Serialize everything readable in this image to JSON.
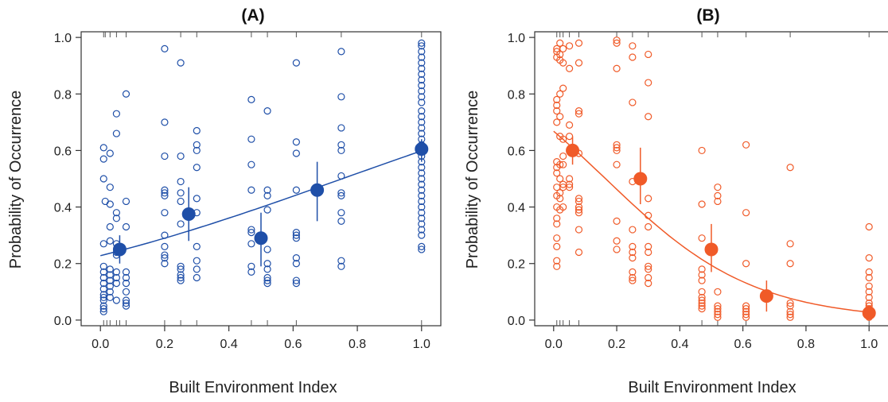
{
  "chart_data": [
    {
      "type": "scatter",
      "title": "(A)",
      "xlabel": "Built Environment Index",
      "ylabel": "Probability of Occurrence",
      "xlim": [
        -0.06,
        1.06
      ],
      "ylim": [
        -0.02,
        1.02
      ],
      "x_ticks": [
        0.0,
        0.2,
        0.4,
        0.6,
        0.8,
        1.0
      ],
      "x_tick_labels": [
        "0.0",
        "0.2",
        "0.4",
        "0.6",
        "0.8",
        "1.0"
      ],
      "y_ticks": [
        0.0,
        0.2,
        0.4,
        0.6,
        0.8,
        1.0
      ],
      "y_tick_labels": [
        "0.0",
        "0.2",
        "0.4",
        "0.6",
        "0.8",
        "1.0"
      ],
      "grid": false,
      "color": "#1f4fa8",
      "points": [
        [
          0.01,
          0.61
        ],
        [
          0.01,
          0.57
        ],
        [
          0.01,
          0.5
        ],
        [
          0.015,
          0.42
        ],
        [
          0.01,
          0.27
        ],
        [
          0.01,
          0.19
        ],
        [
          0.01,
          0.17
        ],
        [
          0.01,
          0.15
        ],
        [
          0.01,
          0.13
        ],
        [
          0.01,
          0.11
        ],
        [
          0.01,
          0.09
        ],
        [
          0.01,
          0.08
        ],
        [
          0.01,
          0.07
        ],
        [
          0.01,
          0.05
        ],
        [
          0.01,
          0.04
        ],
        [
          0.01,
          0.03
        ],
        [
          0.03,
          0.59
        ],
        [
          0.03,
          0.47
        ],
        [
          0.03,
          0.41
        ],
        [
          0.03,
          0.33
        ],
        [
          0.03,
          0.28
        ],
        [
          0.03,
          0.18
        ],
        [
          0.03,
          0.16
        ],
        [
          0.03,
          0.14
        ],
        [
          0.03,
          0.12
        ],
        [
          0.03,
          0.1
        ],
        [
          0.03,
          0.08
        ],
        [
          0.05,
          0.73
        ],
        [
          0.05,
          0.66
        ],
        [
          0.05,
          0.38
        ],
        [
          0.05,
          0.36
        ],
        [
          0.05,
          0.27
        ],
        [
          0.05,
          0.24
        ],
        [
          0.05,
          0.23
        ],
        [
          0.05,
          0.17
        ],
        [
          0.05,
          0.15
        ],
        [
          0.05,
          0.13
        ],
        [
          0.05,
          0.07
        ],
        [
          0.08,
          0.8
        ],
        [
          0.08,
          0.42
        ],
        [
          0.08,
          0.33
        ],
        [
          0.08,
          0.17
        ],
        [
          0.08,
          0.15
        ],
        [
          0.08,
          0.13
        ],
        [
          0.08,
          0.1
        ],
        [
          0.08,
          0.07
        ],
        [
          0.08,
          0.06
        ],
        [
          0.08,
          0.05
        ],
        [
          0.2,
          0.96
        ],
        [
          0.2,
          0.7
        ],
        [
          0.2,
          0.58
        ],
        [
          0.2,
          0.46
        ],
        [
          0.2,
          0.45
        ],
        [
          0.2,
          0.44
        ],
        [
          0.2,
          0.38
        ],
        [
          0.2,
          0.3
        ],
        [
          0.2,
          0.26
        ],
        [
          0.2,
          0.23
        ],
        [
          0.2,
          0.22
        ],
        [
          0.2,
          0.2
        ],
        [
          0.25,
          0.91
        ],
        [
          0.25,
          0.58
        ],
        [
          0.25,
          0.49
        ],
        [
          0.25,
          0.45
        ],
        [
          0.25,
          0.42
        ],
        [
          0.25,
          0.34
        ],
        [
          0.25,
          0.19
        ],
        [
          0.25,
          0.18
        ],
        [
          0.25,
          0.16
        ],
        [
          0.25,
          0.15
        ],
        [
          0.25,
          0.14
        ],
        [
          0.3,
          0.67
        ],
        [
          0.3,
          0.62
        ],
        [
          0.3,
          0.6
        ],
        [
          0.3,
          0.54
        ],
        [
          0.3,
          0.43
        ],
        [
          0.3,
          0.38
        ],
        [
          0.3,
          0.26
        ],
        [
          0.3,
          0.21
        ],
        [
          0.3,
          0.18
        ],
        [
          0.3,
          0.15
        ],
        [
          0.47,
          0.78
        ],
        [
          0.47,
          0.64
        ],
        [
          0.47,
          0.55
        ],
        [
          0.47,
          0.46
        ],
        [
          0.47,
          0.32
        ],
        [
          0.47,
          0.31
        ],
        [
          0.47,
          0.27
        ],
        [
          0.47,
          0.19
        ],
        [
          0.47,
          0.17
        ],
        [
          0.52,
          0.74
        ],
        [
          0.52,
          0.46
        ],
        [
          0.52,
          0.44
        ],
        [
          0.52,
          0.39
        ],
        [
          0.52,
          0.25
        ],
        [
          0.52,
          0.2
        ],
        [
          0.52,
          0.18
        ],
        [
          0.52,
          0.15
        ],
        [
          0.52,
          0.14
        ],
        [
          0.52,
          0.13
        ],
        [
          0.61,
          0.91
        ],
        [
          0.61,
          0.63
        ],
        [
          0.61,
          0.59
        ],
        [
          0.61,
          0.46
        ],
        [
          0.61,
          0.31
        ],
        [
          0.61,
          0.3
        ],
        [
          0.61,
          0.29
        ],
        [
          0.61,
          0.22
        ],
        [
          0.61,
          0.2
        ],
        [
          0.61,
          0.14
        ],
        [
          0.61,
          0.13
        ],
        [
          0.75,
          0.95
        ],
        [
          0.75,
          0.79
        ],
        [
          0.75,
          0.68
        ],
        [
          0.75,
          0.62
        ],
        [
          0.75,
          0.6
        ],
        [
          0.75,
          0.51
        ],
        [
          0.75,
          0.45
        ],
        [
          0.75,
          0.44
        ],
        [
          0.75,
          0.38
        ],
        [
          0.75,
          0.35
        ],
        [
          0.75,
          0.21
        ],
        [
          0.75,
          0.19
        ],
        [
          1.0,
          0.98
        ],
        [
          1.0,
          0.97
        ],
        [
          1.0,
          0.95
        ],
        [
          1.0,
          0.93
        ],
        [
          1.0,
          0.91
        ],
        [
          1.0,
          0.89
        ],
        [
          1.0,
          0.87
        ],
        [
          1.0,
          0.85
        ],
        [
          1.0,
          0.83
        ],
        [
          1.0,
          0.81
        ],
        [
          1.0,
          0.79
        ],
        [
          1.0,
          0.77
        ],
        [
          1.0,
          0.74
        ],
        [
          1.0,
          0.72
        ],
        [
          1.0,
          0.7
        ],
        [
          1.0,
          0.68
        ],
        [
          1.0,
          0.66
        ],
        [
          1.0,
          0.64
        ],
        [
          1.0,
          0.62
        ],
        [
          1.0,
          0.6
        ],
        [
          1.0,
          0.58
        ],
        [
          1.0,
          0.56
        ],
        [
          1.0,
          0.54
        ],
        [
          1.0,
          0.52
        ],
        [
          1.0,
          0.5
        ],
        [
          1.0,
          0.48
        ],
        [
          1.0,
          0.46
        ],
        [
          1.0,
          0.44
        ],
        [
          1.0,
          0.42
        ],
        [
          1.0,
          0.4
        ],
        [
          1.0,
          0.38
        ],
        [
          1.0,
          0.36
        ],
        [
          1.0,
          0.34
        ],
        [
          1.0,
          0.32
        ],
        [
          1.0,
          0.3
        ],
        [
          1.0,
          0.26
        ],
        [
          1.0,
          0.25
        ]
      ],
      "means": [
        {
          "x": 0.06,
          "y": 0.25,
          "lo": 0.2,
          "hi": 0.3
        },
        {
          "x": 0.275,
          "y": 0.375,
          "lo": 0.28,
          "hi": 0.47
        },
        {
          "x": 0.5,
          "y": 0.29,
          "lo": 0.19,
          "hi": 0.38
        },
        {
          "x": 0.675,
          "y": 0.46,
          "lo": 0.35,
          "hi": 0.56
        },
        {
          "x": 1.0,
          "y": 0.605,
          "lo": 0.56,
          "hi": 0.64
        }
      ],
      "fit": {
        "type": "logistic",
        "intercept": -1.22,
        "slope": 1.62,
        "x_range": [
          0.0,
          1.0
        ]
      },
      "rug_top": [
        0.01,
        0.015,
        0.03,
        0.05,
        0.08,
        0.25,
        0.3,
        0.47,
        0.52,
        0.61,
        0.75,
        1.0
      ],
      "rug_bottom": [
        0.01,
        0.02,
        0.03,
        0.05,
        0.06,
        0.08,
        0.2,
        0.25,
        0.3,
        0.47,
        0.52,
        0.61,
        1.0
      ]
    },
    {
      "type": "scatter",
      "title": "(B)",
      "xlabel": "Built Environment Index",
      "ylabel": "Probability of Occurrence",
      "xlim": [
        -0.06,
        1.06
      ],
      "ylim": [
        -0.02,
        1.02
      ],
      "x_ticks": [
        0.0,
        0.2,
        0.4,
        0.6,
        0.8,
        1.0
      ],
      "x_tick_labels": [
        "0.0",
        "0.2",
        "0.4",
        "0.6",
        "0.8",
        "1.0"
      ],
      "y_ticks": [
        0.0,
        0.2,
        0.4,
        0.6,
        0.8,
        1.0
      ],
      "y_tick_labels": [
        "0.0",
        "0.2",
        "0.4",
        "0.6",
        "0.8",
        "1.0"
      ],
      "grid": false,
      "color": "#f05a28",
      "points": [
        [
          0.01,
          0.96
        ],
        [
          0.01,
          0.95
        ],
        [
          0.01,
          0.93
        ],
        [
          0.01,
          0.78
        ],
        [
          0.01,
          0.76
        ],
        [
          0.01,
          0.74
        ],
        [
          0.01,
          0.7
        ],
        [
          0.01,
          0.56
        ],
        [
          0.01,
          0.54
        ],
        [
          0.01,
          0.52
        ],
        [
          0.01,
          0.47
        ],
        [
          0.01,
          0.44
        ],
        [
          0.01,
          0.4
        ],
        [
          0.01,
          0.36
        ],
        [
          0.01,
          0.34
        ],
        [
          0.01,
          0.29
        ],
        [
          0.01,
          0.26
        ],
        [
          0.01,
          0.21
        ],
        [
          0.01,
          0.19
        ],
        [
          0.02,
          0.98
        ],
        [
          0.02,
          0.94
        ],
        [
          0.02,
          0.92
        ],
        [
          0.02,
          0.8
        ],
        [
          0.02,
          0.72
        ],
        [
          0.02,
          0.65
        ],
        [
          0.02,
          0.55
        ],
        [
          0.02,
          0.5
        ],
        [
          0.02,
          0.45
        ],
        [
          0.02,
          0.43
        ],
        [
          0.02,
          0.39
        ],
        [
          0.03,
          0.96
        ],
        [
          0.03,
          0.91
        ],
        [
          0.03,
          0.82
        ],
        [
          0.03,
          0.64
        ],
        [
          0.03,
          0.58
        ],
        [
          0.03,
          0.55
        ],
        [
          0.03,
          0.48
        ],
        [
          0.03,
          0.47
        ],
        [
          0.03,
          0.4
        ],
        [
          0.05,
          0.97
        ],
        [
          0.05,
          0.89
        ],
        [
          0.05,
          0.69
        ],
        [
          0.05,
          0.65
        ],
        [
          0.05,
          0.5
        ],
        [
          0.05,
          0.48
        ],
        [
          0.05,
          0.47
        ],
        [
          0.08,
          0.98
        ],
        [
          0.08,
          0.91
        ],
        [
          0.08,
          0.74
        ],
        [
          0.08,
          0.73
        ],
        [
          0.08,
          0.59
        ],
        [
          0.08,
          0.43
        ],
        [
          0.08,
          0.42
        ],
        [
          0.08,
          0.4
        ],
        [
          0.08,
          0.39
        ],
        [
          0.08,
          0.38
        ],
        [
          0.08,
          0.32
        ],
        [
          0.08,
          0.24
        ],
        [
          0.2,
          0.99
        ],
        [
          0.2,
          0.98
        ],
        [
          0.2,
          0.89
        ],
        [
          0.2,
          0.62
        ],
        [
          0.2,
          0.61
        ],
        [
          0.2,
          0.6
        ],
        [
          0.2,
          0.55
        ],
        [
          0.2,
          0.35
        ],
        [
          0.2,
          0.28
        ],
        [
          0.2,
          0.25
        ],
        [
          0.25,
          0.97
        ],
        [
          0.25,
          0.93
        ],
        [
          0.25,
          0.77
        ],
        [
          0.25,
          0.49
        ],
        [
          0.25,
          0.32
        ],
        [
          0.25,
          0.26
        ],
        [
          0.25,
          0.24
        ],
        [
          0.25,
          0.22
        ],
        [
          0.25,
          0.17
        ],
        [
          0.25,
          0.15
        ],
        [
          0.25,
          0.14
        ],
        [
          0.3,
          0.94
        ],
        [
          0.3,
          0.84
        ],
        [
          0.3,
          0.72
        ],
        [
          0.3,
          0.43
        ],
        [
          0.3,
          0.37
        ],
        [
          0.3,
          0.33
        ],
        [
          0.3,
          0.26
        ],
        [
          0.3,
          0.24
        ],
        [
          0.3,
          0.19
        ],
        [
          0.3,
          0.18
        ],
        [
          0.3,
          0.15
        ],
        [
          0.3,
          0.13
        ],
        [
          0.47,
          0.6
        ],
        [
          0.47,
          0.41
        ],
        [
          0.47,
          0.29
        ],
        [
          0.47,
          0.18
        ],
        [
          0.47,
          0.16
        ],
        [
          0.47,
          0.14
        ],
        [
          0.47,
          0.1
        ],
        [
          0.47,
          0.08
        ],
        [
          0.47,
          0.07
        ],
        [
          0.47,
          0.06
        ],
        [
          0.47,
          0.05
        ],
        [
          0.47,
          0.04
        ],
        [
          0.52,
          0.47
        ],
        [
          0.52,
          0.44
        ],
        [
          0.52,
          0.42
        ],
        [
          0.52,
          0.1
        ],
        [
          0.52,
          0.05
        ],
        [
          0.52,
          0.04
        ],
        [
          0.52,
          0.03
        ],
        [
          0.52,
          0.02
        ],
        [
          0.52,
          0.01
        ],
        [
          0.61,
          0.62
        ],
        [
          0.61,
          0.38
        ],
        [
          0.61,
          0.2
        ],
        [
          0.61,
          0.05
        ],
        [
          0.61,
          0.04
        ],
        [
          0.61,
          0.03
        ],
        [
          0.61,
          0.02
        ],
        [
          0.61,
          0.01
        ],
        [
          0.75,
          0.54
        ],
        [
          0.75,
          0.27
        ],
        [
          0.75,
          0.2
        ],
        [
          0.75,
          0.06
        ],
        [
          0.75,
          0.05
        ],
        [
          0.75,
          0.03
        ],
        [
          0.75,
          0.02
        ],
        [
          0.75,
          0.01
        ],
        [
          1.0,
          0.33
        ],
        [
          1.0,
          0.22
        ],
        [
          1.0,
          0.17
        ],
        [
          1.0,
          0.15
        ],
        [
          1.0,
          0.12
        ],
        [
          1.0,
          0.1
        ],
        [
          1.0,
          0.08
        ],
        [
          1.0,
          0.06
        ],
        [
          1.0,
          0.05
        ],
        [
          1.0,
          0.04
        ],
        [
          1.0,
          0.03
        ],
        [
          1.0,
          0.02
        ],
        [
          1.0,
          0.01
        ]
      ],
      "means": [
        {
          "x": 0.06,
          "y": 0.6,
          "lo": 0.55,
          "hi": 0.65
        },
        {
          "x": 0.275,
          "y": 0.5,
          "lo": 0.41,
          "hi": 0.61
        },
        {
          "x": 0.5,
          "y": 0.25,
          "lo": 0.17,
          "hi": 0.34
        },
        {
          "x": 0.675,
          "y": 0.085,
          "lo": 0.03,
          "hi": 0.14
        },
        {
          "x": 1.0,
          "y": 0.025,
          "lo": 0.0,
          "hi": 0.05
        }
      ],
      "fit": {
        "type": "logistic",
        "intercept": 0.7,
        "slope": -4.25,
        "x_range": [
          0.0,
          1.0
        ]
      },
      "rug_top": [
        0.01,
        0.02,
        0.03,
        0.05,
        0.08,
        0.2,
        0.25,
        0.3,
        0.47,
        0.52,
        0.61,
        0.75,
        1.0
      ],
      "rug_bottom": [
        0.01,
        0.02,
        0.03,
        0.05,
        0.08,
        0.47,
        0.52,
        0.61,
        1.0
      ]
    }
  ]
}
